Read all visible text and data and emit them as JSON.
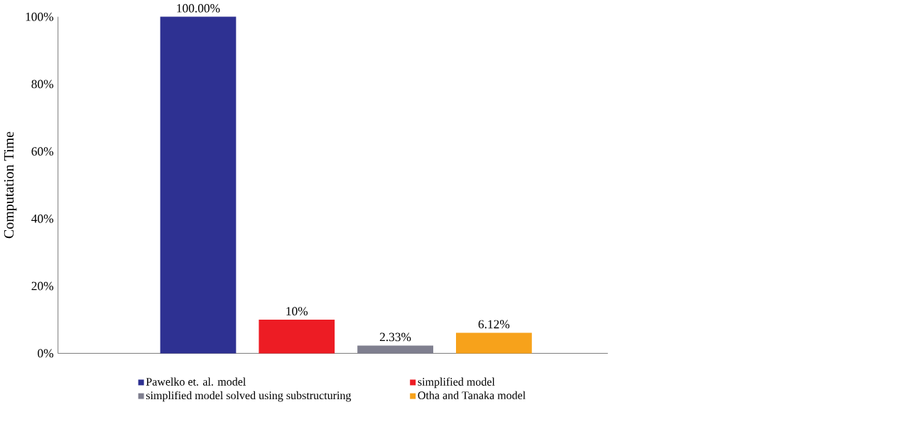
{
  "chart_data": {
    "type": "bar",
    "ylabel": "Computation Time",
    "categories": [
      null
    ],
    "series": [
      {
        "name": "Pawelko et. al. model",
        "color": "#2e3192",
        "values": [
          100
        ],
        "value_labels": [
          "100.00%"
        ]
      },
      {
        "name": "simplified model",
        "color": "#ed1c24",
        "values": [
          10
        ],
        "value_labels": [
          "10%"
        ]
      },
      {
        "name": "simplified model solved using substructuring",
        "color": "#7f7f8f",
        "values": [
          2.33
        ],
        "value_labels": [
          "2.33%"
        ]
      },
      {
        "name": "Otha and Tanaka model",
        "color": "#f7a21b",
        "values": [
          6.12
        ],
        "value_labels": [
          "6.12%"
        ]
      }
    ],
    "ylim": [
      0,
      100
    ],
    "yticks": [
      {
        "value": 0,
        "label": "0%"
      },
      {
        "value": 20,
        "label": "20%"
      },
      {
        "value": 40,
        "label": "40%"
      },
      {
        "value": 60,
        "label": "60%"
      },
      {
        "value": 80,
        "label": "80%"
      },
      {
        "value": 100,
        "label": "100%"
      }
    ],
    "tick_labels": "y",
    "legend": "bottom"
  }
}
